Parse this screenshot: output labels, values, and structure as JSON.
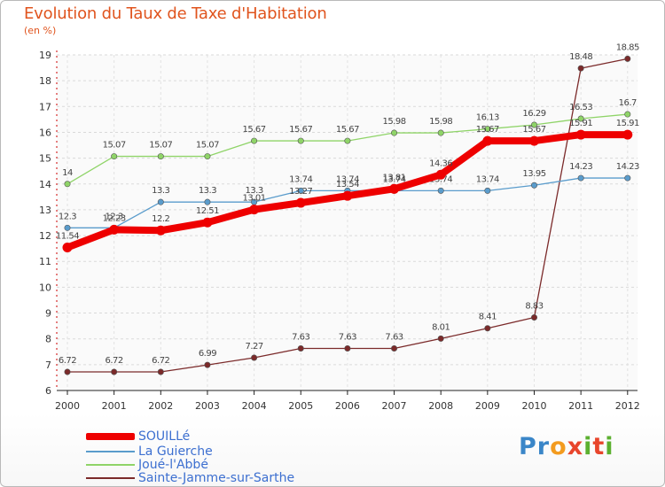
{
  "title": "Evolution du Taux de Taxe d'Habitation",
  "unit_label": "(en %)",
  "logo": {
    "letters": [
      {
        "ch": "P",
        "color": "#3a86c8"
      },
      {
        "ch": "r",
        "color": "#3a86c8"
      },
      {
        "ch": "o",
        "color": "#f39b1f"
      },
      {
        "ch": "x",
        "color": "#e8452c"
      },
      {
        "ch": "i",
        "color": "#5cb030"
      },
      {
        "ch": "t",
        "color": "#e8452c"
      },
      {
        "ch": "i",
        "color": "#5cb030"
      }
    ]
  },
  "chart_data": {
    "type": "line",
    "title": "Evolution du Taux de Taxe d'Habitation",
    "ylabel": "(en %)",
    "xlabel": "",
    "x": [
      "2000",
      "2001",
      "2002",
      "2003",
      "2004",
      "2005",
      "2006",
      "2007",
      "2008",
      "2009",
      "2010",
      "2011",
      "2012"
    ],
    "ylim": [
      6,
      19
    ],
    "yticks": [
      6,
      7,
      8,
      9,
      10,
      11,
      12,
      13,
      14,
      15,
      16,
      17,
      18,
      19
    ],
    "grid": true,
    "legend_position": "bottom-left",
    "series": [
      {
        "name": "Sainte-Jamme-sur-Sarthe",
        "color": "#7b2a2a",
        "width": 1.3,
        "values": [
          6.72,
          6.72,
          6.72,
          6.99,
          7.27,
          7.63,
          7.63,
          7.63,
          8.01,
          8.41,
          8.83,
          18.48,
          18.85
        ],
        "labels": [
          "6.72",
          "6.72",
          "6.72",
          "6.99",
          "7.27",
          "7.63",
          "7.63",
          "7.63",
          "8.01",
          "8.41",
          "8.83",
          "18.48",
          "18.85"
        ]
      },
      {
        "name": "La Guierche",
        "color": "#5a9ccc",
        "width": 1.3,
        "values": [
          12.3,
          12.3,
          13.3,
          13.3,
          13.3,
          13.74,
          13.74,
          13.74,
          13.74,
          13.74,
          13.95,
          14.23,
          14.23
        ],
        "labels": [
          "12.3",
          "12.3",
          "13.3",
          "13.3",
          "13.3",
          "13.74",
          "13.74",
          "13.74",
          "13.74",
          "13.74",
          "13.95",
          "14.23",
          "14.23"
        ]
      },
      {
        "name": "Joué-l'Abbé",
        "color": "#8fd468",
        "width": 1.3,
        "values": [
          14,
          15.07,
          15.07,
          15.07,
          15.67,
          15.67,
          15.67,
          15.98,
          15.98,
          16.13,
          16.29,
          16.53,
          16.7
        ],
        "labels": [
          "14",
          "15.07",
          "15.07",
          "15.07",
          "15.67",
          "15.67",
          "15.67",
          "15.98",
          "15.98",
          "16.13",
          "16.29",
          "16.53",
          "16.7"
        ]
      },
      {
        "name": "SOUILLé",
        "color": "#ee0000",
        "width": 8,
        "values": [
          11.54,
          12.23,
          12.2,
          12.51,
          13.01,
          13.27,
          13.54,
          13.81,
          14.36,
          15.67,
          15.67,
          15.91,
          15.91
        ],
        "labels": [
          "11.54",
          "12.23",
          "12.2",
          "12.51",
          "13.01",
          "13.27",
          "13.54",
          "13.81",
          "14.36",
          "15.67",
          "15.67",
          "15.91",
          "15.91"
        ]
      }
    ],
    "legend": [
      "SOUILLé",
      "La Guierche",
      "Joué-l'Abbé",
      "Sainte-Jamme-sur-Sarthe"
    ]
  }
}
